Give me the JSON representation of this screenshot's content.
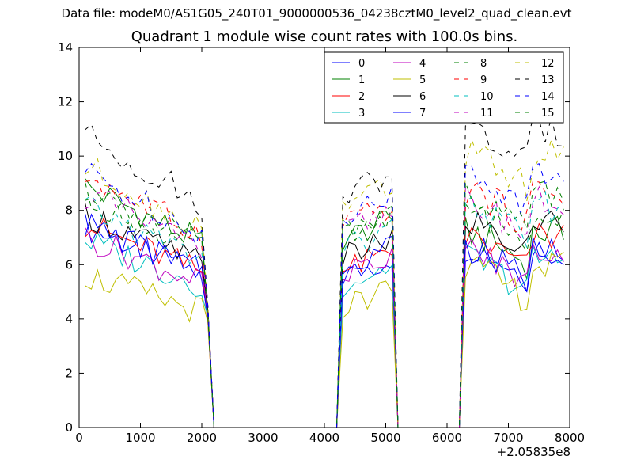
{
  "figure": {
    "suptitle": "Data file: modeM0/AS1G05_240T01_9000000536_04238cztM0_level2_quad_clean.evt",
    "x_offset_label": "+2.05835e8"
  },
  "chart_data": {
    "type": "line",
    "title": "Quadrant 1 module wise count rates with 100.0s bins.",
    "xlabel": "",
    "ylabel": "",
    "xlim": [
      0,
      8000
    ],
    "ylim": [
      0,
      14
    ],
    "xticks": [
      0,
      1000,
      2000,
      3000,
      4000,
      5000,
      6000,
      7000,
      8000
    ],
    "yticks": [
      0,
      2,
      4,
      6,
      8,
      10,
      12,
      14
    ],
    "legend_position": "top-right",
    "legend_columns": 4,
    "segments": [
      [
        100,
        2100
      ],
      [
        4250,
        5150
      ],
      [
        6250,
        7950
      ]
    ],
    "series": [
      {
        "name": "0",
        "color": "#0000ff",
        "dash": "solid",
        "level": 0.81,
        "seg_levels": [
          7.4,
          5.5,
          6.7
        ]
      },
      {
        "name": "1",
        "color": "#008000",
        "dash": "solid",
        "level": 0.9,
        "seg_levels": [
          8.9,
          6.9,
          7.2
        ]
      },
      {
        "name": "2",
        "color": "#ff0000",
        "dash": "solid",
        "level": 0.82,
        "seg_levels": [
          7.5,
          5.7,
          7.0
        ]
      },
      {
        "name": "3",
        "color": "#00bfbf",
        "dash": "solid",
        "level": 0.73,
        "seg_levels": [
          6.9,
          5.2,
          6.2
        ]
      },
      {
        "name": "4",
        "color": "#bf00bf",
        "dash": "solid",
        "level": 0.76,
        "seg_levels": [
          7.0,
          5.6,
          6.5
        ]
      },
      {
        "name": "5",
        "color": "#bfbf00",
        "dash": "solid",
        "level": 0.6,
        "seg_levels": [
          5.6,
          4.4,
          5.9
        ]
      },
      {
        "name": "6",
        "color": "#000000",
        "dash": "solid",
        "level": 0.86,
        "seg_levels": [
          7.9,
          6.2,
          7.6
        ]
      },
      {
        "name": "7",
        "color": "#0000ff",
        "dash": "solid",
        "level": 0.79,
        "seg_levels": [
          7.5,
          6.0,
          6.6
        ]
      },
      {
        "name": "8",
        "color": "#008000",
        "dash": "dashed",
        "level": 0.92,
        "seg_levels": [
          8.5,
          7.0,
          8.0
        ]
      },
      {
        "name": "9",
        "color": "#ff0000",
        "dash": "dashed",
        "level": 0.98,
        "seg_levels": [
          9.3,
          7.4,
          8.7
        ]
      },
      {
        "name": "10",
        "color": "#00bfbf",
        "dash": "dashed",
        "level": 0.88,
        "seg_levels": [
          8.1,
          6.5,
          8.1
        ]
      },
      {
        "name": "11",
        "color": "#bf00bf",
        "dash": "dashed",
        "level": 0.94,
        "seg_levels": [
          8.6,
          7.2,
          8.3
        ]
      },
      {
        "name": "12",
        "color": "#bfbf00",
        "dash": "dashed",
        "level": 1.0,
        "seg_levels": [
          9.6,
          8.2,
          10.0
        ]
      },
      {
        "name": "13",
        "color": "#000000",
        "dash": "dashed",
        "level": 1.05,
        "seg_levels": [
          10.8,
          8.6,
          10.9
        ]
      },
      {
        "name": "14",
        "color": "#0000ff",
        "dash": "dashed",
        "level": 1.0,
        "seg_levels": [
          9.4,
          7.8,
          9.3
        ]
      },
      {
        "name": "15",
        "color": "#008000",
        "dash": "dashed",
        "level": 0.93,
        "seg_levels": [
          8.8,
          7.1,
          8.6
        ]
      }
    ]
  }
}
